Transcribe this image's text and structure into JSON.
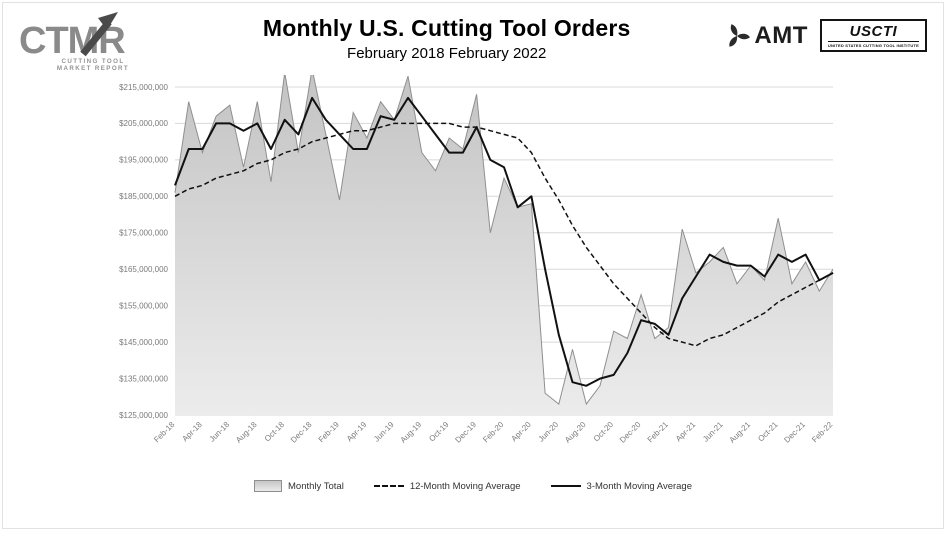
{
  "header": {
    "ctmr": {
      "wordmark": "CTMR",
      "caption_line1": "CUTTING TOOL",
      "caption_line2": "MARKET REPORT"
    },
    "title": "Monthly U.S. Cutting Tool Orders",
    "subtitle": "February 2018 February 2022",
    "amt": {
      "label": "AMT"
    },
    "uscti": {
      "label": "USCTI",
      "caption": "UNITED STATES CUTTING TOOL INSTITUTE"
    }
  },
  "legend": [
    {
      "label": "Monthly Total"
    },
    {
      "label": "12-Month Moving Average"
    },
    {
      "label": "3-Month Moving Average"
    }
  ],
  "chart_data": {
    "type": "line",
    "title": "Monthly U.S. Cutting Tool Orders",
    "subtitle": "February 2018 February 2022",
    "xlabel": "",
    "ylabel": "",
    "unit": "USD",
    "grid": true,
    "legend_position": "bottom",
    "ylim_millions": [
      125,
      215
    ],
    "ytick_step_millions": 10,
    "y_tick_prefix": "$",
    "x_label_every": 2,
    "x": [
      "Feb-18",
      "Mar-18",
      "Apr-18",
      "May-18",
      "Jun-18",
      "Jul-18",
      "Aug-18",
      "Sep-18",
      "Oct-18",
      "Nov-18",
      "Dec-18",
      "Jan-19",
      "Feb-19",
      "Mar-19",
      "Apr-19",
      "May-19",
      "Jun-19",
      "Jul-19",
      "Aug-19",
      "Sep-19",
      "Oct-19",
      "Nov-19",
      "Dec-19",
      "Jan-20",
      "Feb-20",
      "Mar-20",
      "Apr-20",
      "May-20",
      "Jun-20",
      "Jul-20",
      "Aug-20",
      "Sep-20",
      "Oct-20",
      "Nov-20",
      "Dec-20",
      "Jan-21",
      "Feb-21",
      "Mar-21",
      "Apr-21",
      "May-21",
      "Jun-21",
      "Jul-21",
      "Aug-21",
      "Sep-21",
      "Oct-21",
      "Nov-21",
      "Dec-21",
      "Jan-22",
      "Feb-22"
    ],
    "series": [
      {
        "name": "Monthly Total",
        "type": "area",
        "values_millions": [
          186,
          211,
          197,
          207,
          210,
          193,
          211,
          189,
          219,
          197,
          220,
          202,
          184,
          208,
          201,
          211,
          206,
          218,
          197,
          192,
          201,
          198,
          213,
          175,
          190,
          182,
          183,
          131,
          128,
          143,
          128,
          133,
          148,
          146,
          158,
          146,
          149,
          176,
          164,
          167,
          171,
          161,
          166,
          162,
          179,
          161,
          167,
          159,
          165
        ]
      },
      {
        "name": "12-Month Moving Average",
        "type": "dashed-line",
        "values_millions": [
          185,
          187,
          188,
          190,
          191,
          192,
          194,
          195,
          197,
          198,
          200,
          201,
          202,
          203,
          203,
          204,
          205,
          205,
          205,
          205,
          205,
          204,
          204,
          203,
          202,
          201,
          197,
          190,
          184,
          177,
          171,
          166,
          161,
          157,
          153,
          149,
          146,
          145,
          144,
          146,
          147,
          149,
          151,
          153,
          156,
          158,
          160,
          162,
          164
        ]
      },
      {
        "name": "3-Month Moving Average",
        "type": "line",
        "values_millions": [
          188,
          198,
          198,
          205,
          205,
          203,
          205,
          198,
          206,
          202,
          212,
          206,
          202,
          198,
          198,
          207,
          206,
          212,
          207,
          202,
          197,
          197,
          204,
          195,
          193,
          182,
          185,
          165,
          147,
          134,
          133,
          135,
          136,
          142,
          151,
          150,
          147,
          157,
          163,
          169,
          167,
          166,
          166,
          163,
          169,
          167,
          169,
          162,
          164
        ]
      }
    ],
    "colors": {
      "area_top": "#c3c3c3",
      "area_bottom": "#ececec",
      "area_edge": "#8f8f8f",
      "line": "#111111",
      "grid": "#d8d8d8"
    }
  }
}
